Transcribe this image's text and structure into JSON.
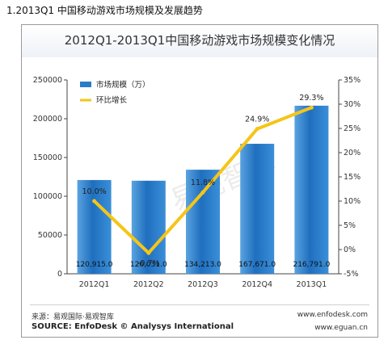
{
  "page": {
    "heading": "1.2013Q1  中国移动游戏市场规模及发展趋势"
  },
  "chart_data": {
    "type": "bar",
    "title": "2012Q1-2013Q1中国移动游戏市场规模变化情况",
    "categories": [
      "2012Q1",
      "2012Q2",
      "2012Q3",
      "2012Q4",
      "2013Q1"
    ],
    "series": [
      {
        "name": "市场规模（万）",
        "type": "bar",
        "axis": "left",
        "values": [
          120915.0,
          120031.0,
          134213.0,
          167671.0,
          216791.0
        ],
        "labels": [
          "120,915.0",
          "120,031.0",
          "134,213.0",
          "167,671.0",
          "216,791.0"
        ],
        "color": "#2a7cc7"
      },
      {
        "name": "环比增长",
        "type": "line",
        "axis": "right",
        "values": [
          10.0,
          -0.7,
          11.8,
          24.9,
          29.3
        ],
        "labels": [
          "10.0%",
          "-0.7%",
          "11.8%",
          "24.9%",
          "29.3%"
        ],
        "color": "#f5c518"
      }
    ],
    "left_axis": {
      "ylim": [
        0,
        250000
      ],
      "ticks": [
        "0",
        "50000",
        "100000",
        "150000",
        "200000",
        "250000"
      ]
    },
    "right_axis": {
      "ylim": [
        -5,
        35
      ],
      "ticks": [
        "-5%",
        "0%",
        "5%",
        "10%",
        "15%",
        "20%",
        "25%",
        "30%",
        "35%"
      ]
    },
    "legend_position": "top-left",
    "grid": false,
    "watermark": "易观智库"
  },
  "footer": {
    "source_cn": "来源：易观国际·易观智库",
    "source_en": "SOURCE: EnfoDesk © Analysys International",
    "url1": "www.enfodesk.com",
    "url2": "www.eguan.cn"
  }
}
